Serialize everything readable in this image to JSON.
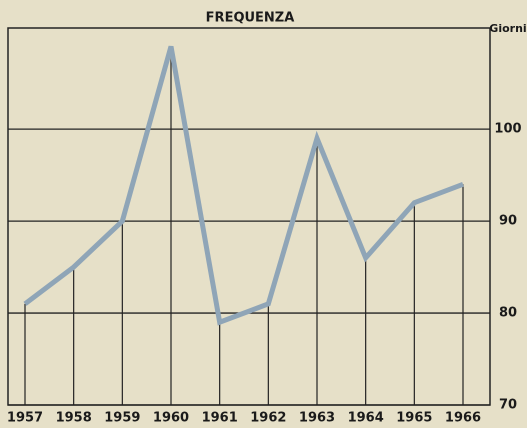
{
  "chart_data": {
    "type": "line",
    "title": "FREQUENZA",
    "y_label": "Giorni",
    "categories": [
      "1957",
      "1958",
      "1959",
      "1960",
      "1961",
      "1962",
      "1963",
      "1964",
      "1965",
      "1966"
    ],
    "series": [
      {
        "name": "Frequenza",
        "color": "#8fa5b7",
        "values": [
          81,
          85,
          90,
          109,
          79,
          81,
          99,
          86,
          92,
          94
        ]
      }
    ],
    "ylim": [
      70,
      111
    ],
    "yticks": [
      70,
      80,
      90,
      100
    ],
    "grid": true,
    "drop_lines": true
  }
}
